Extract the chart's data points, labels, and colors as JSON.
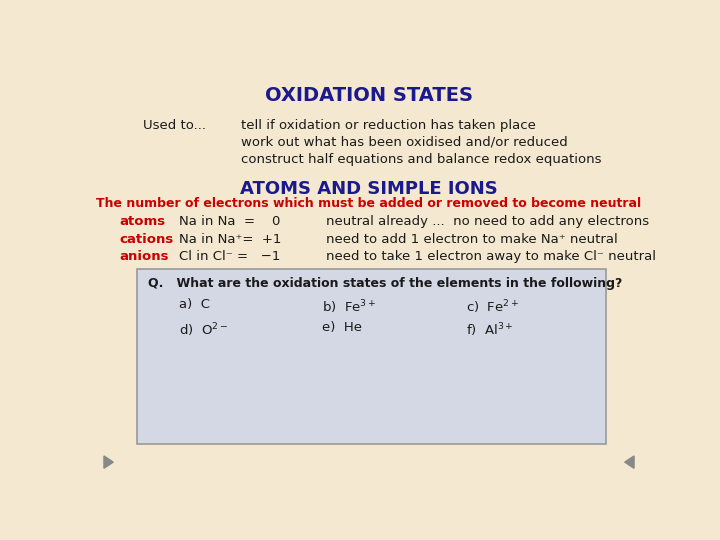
{
  "bg_color": "#f5e8d0",
  "title": "OXIDATION STATES",
  "title_color": "#1a1a8c",
  "title_fontsize": 14,
  "used_to_label": "Used to...",
  "used_to_items": [
    "tell if oxidation or reduction has taken place",
    "work out what has been oxidised and/or reduced",
    "construct half equations and balance redox equations"
  ],
  "section2_title": "ATOMS AND SIMPLE IONS",
  "section2_subtitle": "The number of electrons which must be added or removed to become neutral",
  "section2_title_color": "#1a1a8c",
  "section2_subtitle_color": "#cc0000",
  "text_color_dark": "#1a1a1a",
  "box_bg": "#d4d8e4",
  "box_edge": "#999999",
  "nav_arrow_color": "#888888",
  "main_fontsize": 9.5,
  "label_fontsize": 9.5,
  "subtitle_fontsize": 9.0,
  "section2_fontsize": 13,
  "q_fontsize": 9.0
}
